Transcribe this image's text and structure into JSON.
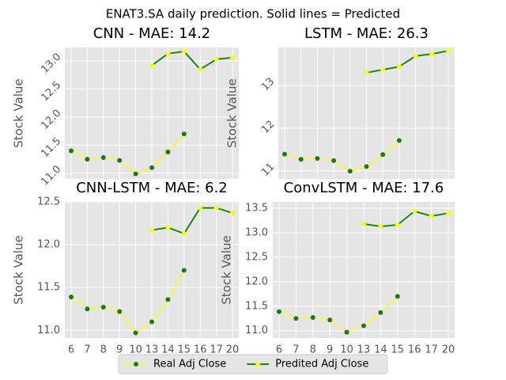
{
  "title": "ENAT3.SA daily prediction. Solid lines = Predicted",
  "legend": [
    {
      "name": "Real Adj Close",
      "color": "#ffff00",
      "marker_color": "#1a7a1a",
      "linestyle": "dashed"
    },
    {
      "name": "Predited Adj Close",
      "color": "#138a13",
      "marker_color": "#ffff00",
      "linestyle": "solid"
    }
  ],
  "chart_data": [
    {
      "type": "line",
      "title": "CNN - MAE: 14.2",
      "ylabel": "Stock Value",
      "show_xticks": false,
      "rotate_yticks": true,
      "categories": [
        "6",
        "7",
        "8",
        "9",
        "10",
        "13",
        "14",
        "15",
        "16",
        "17",
        "20"
      ],
      "ylim": [
        10.9,
        13.24
      ],
      "yticks": [
        {
          "value": 11,
          "label": "11.0"
        },
        11.5,
        {
          "value": 12,
          "label": "12.0"
        },
        12.5,
        {
          "value": 13,
          "label": "13.0"
        }
      ],
      "series": [
        {
          "values": [
            11.4,
            11.25,
            11.28,
            11.23,
            10.99,
            11.1,
            11.38,
            11.7,
            null,
            null,
            null
          ],
          "color": "#ffff00",
          "marker_color": "#1a7a1a",
          "linestyle": "dashed"
        },
        {
          "values": [
            null,
            null,
            null,
            null,
            null,
            12.92,
            13.13,
            13.17,
            12.85,
            13.03,
            13.06
          ],
          "color": "#138a13",
          "marker_color": "#ffff00",
          "linestyle": "solid"
        }
      ]
    },
    {
      "type": "line",
      "title": "LSTM - MAE: 26.3",
      "ylabel": "Stock Value",
      "show_xticks": false,
      "rotate_yticks": true,
      "categories": [
        "6",
        "7",
        "8",
        "9",
        "10",
        "13",
        "14",
        "15",
        "16",
        "17",
        "20"
      ],
      "ylim": [
        10.81,
        13.89
      ],
      "yticks": [
        11,
        12,
        13
      ],
      "series": [
        {
          "values": [
            11.39,
            11.27,
            11.29,
            11.24,
            10.99,
            11.1,
            11.38,
            11.71,
            null,
            null,
            null
          ],
          "color": "#ffff00",
          "marker_color": "#1a7a1a",
          "linestyle": "dashed"
        },
        {
          "values": [
            null,
            null,
            null,
            null,
            null,
            13.3,
            13.37,
            13.44,
            13.69,
            13.74,
            13.81
          ],
          "color": "#138a13",
          "marker_color": "#ffff00",
          "linestyle": "solid"
        }
      ]
    },
    {
      "type": "line",
      "title": "CNN-LSTM - MAE: 6.2",
      "ylabel": "Stock Value",
      "show_xticks": true,
      "rotate_yticks": false,
      "categories": [
        "6",
        "7",
        "8",
        "9",
        "10",
        "13",
        "14",
        "15",
        "16",
        "17",
        "20"
      ],
      "ylim": [
        10.91,
        12.5
      ],
      "yticks": [
        {
          "value": 11,
          "label": "11.0"
        },
        11.5,
        {
          "value": 12,
          "label": "12.0"
        },
        12.5
      ],
      "series": [
        {
          "values": [
            11.39,
            11.25,
            11.27,
            11.22,
            10.97,
            11.1,
            11.36,
            11.7,
            null,
            null,
            null
          ],
          "color": "#ffff00",
          "marker_color": "#1a7a1a",
          "linestyle": "dashed"
        },
        {
          "values": [
            null,
            null,
            null,
            null,
            null,
            12.17,
            12.2,
            12.13,
            12.43,
            12.43,
            12.37
          ],
          "color": "#138a13",
          "marker_color": "#ffff00",
          "linestyle": "solid"
        }
      ]
    },
    {
      "type": "line",
      "title": "ConvLSTM - MAE: 17.6",
      "ylabel": "Stock Value",
      "show_xticks": true,
      "rotate_yticks": false,
      "categories": [
        "6",
        "7",
        "8",
        "9",
        "10",
        "13",
        "14",
        "15",
        "16",
        "17",
        "20"
      ],
      "ylim": [
        10.85,
        13.63
      ],
      "yticks": [
        {
          "value": 11,
          "label": "11.0"
        },
        11.5,
        {
          "value": 12,
          "label": "12.0"
        },
        12.5,
        {
          "value": 13,
          "label": "13.0"
        },
        13.5
      ],
      "series": [
        {
          "values": [
            11.39,
            11.25,
            11.27,
            11.22,
            10.97,
            11.1,
            11.37,
            11.7,
            null,
            null,
            null
          ],
          "color": "#ffff00",
          "marker_color": "#1a7a1a",
          "linestyle": "dashed"
        },
        {
          "values": [
            null,
            null,
            null,
            null,
            null,
            13.18,
            13.13,
            13.16,
            13.44,
            13.34,
            13.4
          ],
          "color": "#138a13",
          "marker_color": "#ffff00",
          "linestyle": "solid"
        }
      ]
    }
  ]
}
